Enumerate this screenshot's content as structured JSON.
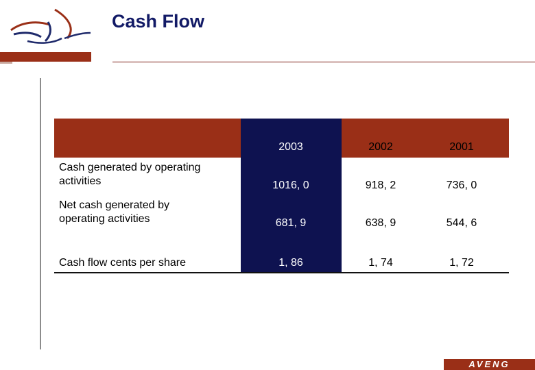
{
  "header": {
    "title": "Cash Flow"
  },
  "brand": {
    "name": "AVENG"
  },
  "table": {
    "years": [
      "2003",
      "2002",
      "2001"
    ],
    "rows": [
      {
        "label_line1": "Cash generated by operating",
        "label_line2": "activities",
        "values": [
          "1016, 0",
          "918, 2",
          "736, 0"
        ]
      },
      {
        "label_line1": "Net cash generated by",
        "label_line2": "operating activities",
        "values": [
          "681, 9",
          "638, 9",
          "544, 6"
        ]
      },
      {
        "label_line1": "Cash flow cents per share",
        "label_line2": "",
        "values": [
          "1, 86",
          "1, 74",
          "1, 72"
        ]
      }
    ]
  },
  "colors": {
    "accent": "#9a2f17",
    "highlight_column": "#0e1250",
    "title": "#121a66"
  }
}
